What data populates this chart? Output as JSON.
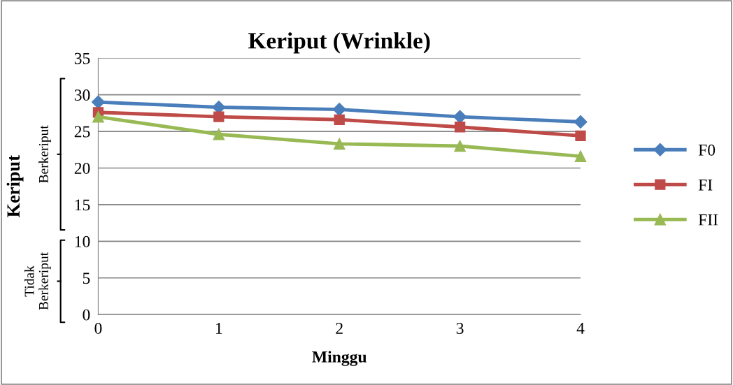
{
  "chart_data": {
    "type": "line",
    "title": "Keriput (Wrinkle)",
    "xlabel": "Minggu",
    "ylabel": "Keriput",
    "x": [
      0,
      1,
      2,
      3,
      4
    ],
    "xlim": [
      0,
      4
    ],
    "xticks": [
      0,
      1,
      2,
      3,
      4
    ],
    "ylim": [
      0,
      35
    ],
    "yticks": [
      0,
      5,
      10,
      15,
      20,
      25,
      30,
      35
    ],
    "grid": "y",
    "legend": "right",
    "series": [
      {
        "name": "F0",
        "color": "#4a7ebb",
        "marker": "diamond",
        "values": [
          29.0,
          28.3,
          28.0,
          27.0,
          26.3
        ]
      },
      {
        "name": "FI",
        "color": "#be4b48",
        "marker": "square",
        "values": [
          27.6,
          27.0,
          26.6,
          25.6,
          24.4
        ]
      },
      {
        "name": "FII",
        "color": "#98b954",
        "marker": "triangle",
        "values": [
          27.0,
          24.6,
          23.3,
          23.0,
          21.6
        ]
      }
    ],
    "annotations": [
      "Berkeriput",
      "Tidak\nBerkeriput"
    ]
  }
}
